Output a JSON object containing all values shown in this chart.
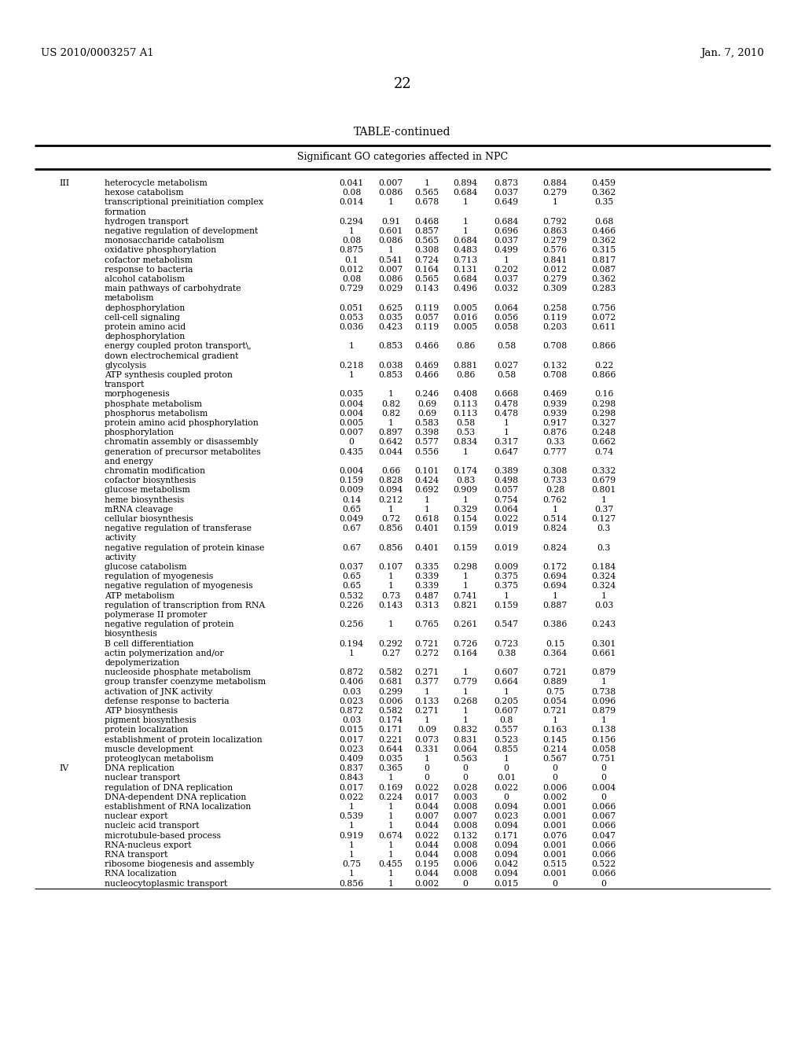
{
  "header_left": "US 2010/0003257 A1",
  "header_right": "Jan. 7, 2010",
  "page_number": "22",
  "table_title": "TABLE-continued",
  "subtitle": "Significant GO categories affected in NPC",
  "rows": [
    {
      "roman": "III",
      "cat": "heterocycle metabolism",
      "cont": "",
      "vals": [
        "0.041",
        "0.007",
        "1",
        "0.894",
        "0.873",
        "0.884",
        "0.459"
      ]
    },
    {
      "roman": "",
      "cat": "hexose catabolism",
      "cont": "",
      "vals": [
        "0.08",
        "0.086",
        "0.565",
        "0.684",
        "0.037",
        "0.279",
        "0.362"
      ]
    },
    {
      "roman": "",
      "cat": "transcriptional preinitiation complex",
      "cont": "formation",
      "vals": [
        "0.014",
        "1",
        "0.678",
        "1",
        "0.649",
        "1",
        "0.35"
      ]
    },
    {
      "roman": "",
      "cat": "hydrogen transport",
      "cont": "",
      "vals": [
        "0.294",
        "0.91",
        "0.468",
        "1",
        "0.684",
        "0.792",
        "0.68"
      ]
    },
    {
      "roman": "",
      "cat": "negative regulation of development",
      "cont": "",
      "vals": [
        "1",
        "0.601",
        "0.857",
        "1",
        "0.696",
        "0.863",
        "0.466"
      ]
    },
    {
      "roman": "",
      "cat": "monosaccharide catabolism",
      "cont": "",
      "vals": [
        "0.08",
        "0.086",
        "0.565",
        "0.684",
        "0.037",
        "0.279",
        "0.362"
      ]
    },
    {
      "roman": "",
      "cat": "oxidative phosphorylation",
      "cont": "",
      "vals": [
        "0.875",
        "1",
        "0.308",
        "0.483",
        "0.499",
        "0.576",
        "0.315"
      ]
    },
    {
      "roman": "",
      "cat": "cofactor metabolism",
      "cont": "",
      "vals": [
        "0.1",
        "0.541",
        "0.724",
        "0.713",
        "1",
        "0.841",
        "0.817"
      ]
    },
    {
      "roman": "",
      "cat": "response to bacteria",
      "cont": "",
      "vals": [
        "0.012",
        "0.007",
        "0.164",
        "0.131",
        "0.202",
        "0.012",
        "0.087"
      ]
    },
    {
      "roman": "",
      "cat": "alcohol catabolism",
      "cont": "",
      "vals": [
        "0.08",
        "0.086",
        "0.565",
        "0.684",
        "0.037",
        "0.279",
        "0.362"
      ]
    },
    {
      "roman": "",
      "cat": "main pathways of carbohydrate",
      "cont": "metabolism",
      "vals": [
        "0.729",
        "0.029",
        "0.143",
        "0.496",
        "0.032",
        "0.309",
        "0.283"
      ]
    },
    {
      "roman": "",
      "cat": "dephosphorylation",
      "cont": "",
      "vals": [
        "0.051",
        "0.625",
        "0.119",
        "0.005",
        "0.064",
        "0.258",
        "0.756"
      ]
    },
    {
      "roman": "",
      "cat": "cell-cell signaling",
      "cont": "",
      "vals": [
        "0.053",
        "0.035",
        "0.057",
        "0.016",
        "0.056",
        "0.119",
        "0.072"
      ]
    },
    {
      "roman": "",
      "cat": "protein amino acid",
      "cont": "dephosphorylation",
      "vals": [
        "0.036",
        "0.423",
        "0.119",
        "0.005",
        "0.058",
        "0.203",
        "0.611"
      ]
    },
    {
      "roman": "",
      "cat": "energy coupled proton transport\\,",
      "cont": "down electrochemical gradient",
      "vals": [
        "1",
        "0.853",
        "0.466",
        "0.86",
        "0.58",
        "0.708",
        "0.866"
      ]
    },
    {
      "roman": "",
      "cat": "glycolysis",
      "cont": "",
      "vals": [
        "0.218",
        "0.038",
        "0.469",
        "0.881",
        "0.027",
        "0.132",
        "0.22"
      ]
    },
    {
      "roman": "",
      "cat": "ATP synthesis coupled proton",
      "cont": "transport",
      "vals": [
        "1",
        "0.853",
        "0.466",
        "0.86",
        "0.58",
        "0.708",
        "0.866"
      ]
    },
    {
      "roman": "",
      "cat": "morphogenesis",
      "cont": "",
      "vals": [
        "0.035",
        "1",
        "0.246",
        "0.408",
        "0.668",
        "0.469",
        "0.16"
      ]
    },
    {
      "roman": "",
      "cat": "phosphate metabolism",
      "cont": "",
      "vals": [
        "0.004",
        "0.82",
        "0.69",
        "0.113",
        "0.478",
        "0.939",
        "0.298"
      ]
    },
    {
      "roman": "",
      "cat": "phosphorus metabolism",
      "cont": "",
      "vals": [
        "0.004",
        "0.82",
        "0.69",
        "0.113",
        "0.478",
        "0.939",
        "0.298"
      ]
    },
    {
      "roman": "",
      "cat": "protein amino acid phosphorylation",
      "cont": "",
      "vals": [
        "0.005",
        "1",
        "0.583",
        "0.58",
        "1",
        "0.917",
        "0.327"
      ]
    },
    {
      "roman": "",
      "cat": "phosphorylation",
      "cont": "",
      "vals": [
        "0.007",
        "0.897",
        "0.398",
        "0.53",
        "1",
        "0.876",
        "0.248"
      ]
    },
    {
      "roman": "",
      "cat": "chromatin assembly or disassembly",
      "cont": "",
      "vals": [
        "0",
        "0.642",
        "0.577",
        "0.834",
        "0.317",
        "0.33",
        "0.662"
      ]
    },
    {
      "roman": "",
      "cat": "generation of precursor metabolites",
      "cont": "and energy",
      "vals": [
        "0.435",
        "0.044",
        "0.556",
        "1",
        "0.647",
        "0.777",
        "0.74"
      ]
    },
    {
      "roman": "",
      "cat": "chromatin modification",
      "cont": "",
      "vals": [
        "0.004",
        "0.66",
        "0.101",
        "0.174",
        "0.389",
        "0.308",
        "0.332"
      ]
    },
    {
      "roman": "",
      "cat": "cofactor biosynthesis",
      "cont": "",
      "vals": [
        "0.159",
        "0.828",
        "0.424",
        "0.83",
        "0.498",
        "0.733",
        "0.679"
      ]
    },
    {
      "roman": "",
      "cat": "glucose metabolism",
      "cont": "",
      "vals": [
        "0.009",
        "0.094",
        "0.692",
        "0.909",
        "0.057",
        "0.28",
        "0.801"
      ]
    },
    {
      "roman": "",
      "cat": "heme biosynthesis",
      "cont": "",
      "vals": [
        "0.14",
        "0.212",
        "1",
        "1",
        "0.754",
        "0.762",
        "1"
      ]
    },
    {
      "roman": "",
      "cat": "mRNA cleavage",
      "cont": "",
      "vals": [
        "0.65",
        "1",
        "1",
        "0.329",
        "0.064",
        "1",
        "0.37"
      ]
    },
    {
      "roman": "",
      "cat": "cellular biosynthesis",
      "cont": "",
      "vals": [
        "0.049",
        "0.72",
        "0.618",
        "0.154",
        "0.022",
        "0.514",
        "0.127"
      ]
    },
    {
      "roman": "",
      "cat": "negative regulation of transferase",
      "cont": "activity",
      "vals": [
        "0.67",
        "0.856",
        "0.401",
        "0.159",
        "0.019",
        "0.824",
        "0.3"
      ]
    },
    {
      "roman": "",
      "cat": "negative regulation of protein kinase",
      "cont": "activity",
      "vals": [
        "0.67",
        "0.856",
        "0.401",
        "0.159",
        "0.019",
        "0.824",
        "0.3"
      ]
    },
    {
      "roman": "",
      "cat": "glucose catabolism",
      "cont": "",
      "vals": [
        "0.037",
        "0.107",
        "0.335",
        "0.298",
        "0.009",
        "0.172",
        "0.184"
      ]
    },
    {
      "roman": "",
      "cat": "regulation of myogenesis",
      "cont": "",
      "vals": [
        "0.65",
        "1",
        "0.339",
        "1",
        "0.375",
        "0.694",
        "0.324"
      ]
    },
    {
      "roman": "",
      "cat": "negative regulation of myogenesis",
      "cont": "",
      "vals": [
        "0.65",
        "1",
        "0.339",
        "1",
        "0.375",
        "0.694",
        "0.324"
      ]
    },
    {
      "roman": "",
      "cat": "ATP metabolism",
      "cont": "",
      "vals": [
        "0.532",
        "0.73",
        "0.487",
        "0.741",
        "1",
        "1",
        "1"
      ]
    },
    {
      "roman": "",
      "cat": "regulation of transcription from RNA",
      "cont": "polymerase II promoter",
      "vals": [
        "0.226",
        "0.143",
        "0.313",
        "0.821",
        "0.159",
        "0.887",
        "0.03"
      ]
    },
    {
      "roman": "",
      "cat": "negative regulation of protein",
      "cont": "biosynthesis",
      "vals": [
        "0.256",
        "1",
        "0.765",
        "0.261",
        "0.547",
        "0.386",
        "0.243"
      ]
    },
    {
      "roman": "",
      "cat": "B cell differentiation",
      "cont": "",
      "vals": [
        "0.194",
        "0.292",
        "0.721",
        "0.726",
        "0.723",
        "0.15",
        "0.301"
      ]
    },
    {
      "roman": "",
      "cat": "actin polymerization and/or",
      "cont": "depolymerization",
      "vals": [
        "1",
        "0.27",
        "0.272",
        "0.164",
        "0.38",
        "0.364",
        "0.661"
      ]
    },
    {
      "roman": "",
      "cat": "nucleoside phosphate metabolism",
      "cont": "",
      "vals": [
        "0.872",
        "0.582",
        "0.271",
        "1",
        "0.607",
        "0.721",
        "0.879"
      ]
    },
    {
      "roman": "",
      "cat": "group transfer coenzyme metabolism",
      "cont": "",
      "vals": [
        "0.406",
        "0.681",
        "0.377",
        "0.779",
        "0.664",
        "0.889",
        "1"
      ]
    },
    {
      "roman": "",
      "cat": "activation of JNK activity",
      "cont": "",
      "vals": [
        "0.03",
        "0.299",
        "1",
        "1",
        "1",
        "0.75",
        "0.738"
      ]
    },
    {
      "roman": "",
      "cat": "defense response to bacteria",
      "cont": "",
      "vals": [
        "0.023",
        "0.006",
        "0.133",
        "0.268",
        "0.205",
        "0.054",
        "0.096"
      ]
    },
    {
      "roman": "",
      "cat": "ATP biosynthesis",
      "cont": "",
      "vals": [
        "0.872",
        "0.582",
        "0.271",
        "1",
        "0.607",
        "0.721",
        "0.879"
      ]
    },
    {
      "roman": "",
      "cat": "pigment biosynthesis",
      "cont": "",
      "vals": [
        "0.03",
        "0.174",
        "1",
        "1",
        "0.8",
        "1",
        "1"
      ]
    },
    {
      "roman": "",
      "cat": "protein localization",
      "cont": "",
      "vals": [
        "0.015",
        "0.171",
        "0.09",
        "0.832",
        "0.557",
        "0.163",
        "0.138"
      ]
    },
    {
      "roman": "",
      "cat": "establishment of protein localization",
      "cont": "",
      "vals": [
        "0.017",
        "0.221",
        "0.073",
        "0.831",
        "0.523",
        "0.145",
        "0.156"
      ]
    },
    {
      "roman": "",
      "cat": "muscle development",
      "cont": "",
      "vals": [
        "0.023",
        "0.644",
        "0.331",
        "0.064",
        "0.855",
        "0.214",
        "0.058"
      ]
    },
    {
      "roman": "",
      "cat": "proteoglycan metabolism",
      "cont": "",
      "vals": [
        "0.409",
        "0.035",
        "1",
        "0.563",
        "1",
        "0.567",
        "0.751"
      ]
    },
    {
      "roman": "IV",
      "cat": "DNA replication",
      "cont": "",
      "vals": [
        "0.837",
        "0.365",
        "0",
        "0",
        "0",
        "0",
        "0"
      ]
    },
    {
      "roman": "",
      "cat": "nuclear transport",
      "cont": "",
      "vals": [
        "0.843",
        "1",
        "0",
        "0",
        "0.01",
        "0",
        "0"
      ]
    },
    {
      "roman": "",
      "cat": "regulation of DNA replication",
      "cont": "",
      "vals": [
        "0.017",
        "0.169",
        "0.022",
        "0.028",
        "0.022",
        "0.006",
        "0.004"
      ]
    },
    {
      "roman": "",
      "cat": "DNA-dependent DNA replication",
      "cont": "",
      "vals": [
        "0.022",
        "0.224",
        "0.017",
        "0.003",
        "0",
        "0.002",
        "0"
      ]
    },
    {
      "roman": "",
      "cat": "establishment of RNA localization",
      "cont": "",
      "vals": [
        "1",
        "1",
        "0.044",
        "0.008",
        "0.094",
        "0.001",
        "0.066"
      ]
    },
    {
      "roman": "",
      "cat": "nuclear export",
      "cont": "",
      "vals": [
        "0.539",
        "1",
        "0.007",
        "0.007",
        "0.023",
        "0.001",
        "0.067"
      ]
    },
    {
      "roman": "",
      "cat": "nucleic acid transport",
      "cont": "",
      "vals": [
        "1",
        "1",
        "0.044",
        "0.008",
        "0.094",
        "0.001",
        "0.066"
      ]
    },
    {
      "roman": "",
      "cat": "microtubule-based process",
      "cont": "",
      "vals": [
        "0.919",
        "0.674",
        "0.022",
        "0.132",
        "0.171",
        "0.076",
        "0.047"
      ]
    },
    {
      "roman": "",
      "cat": "RNA-nucleus export",
      "cont": "",
      "vals": [
        "1",
        "1",
        "0.044",
        "0.008",
        "0.094",
        "0.001",
        "0.066"
      ]
    },
    {
      "roman": "",
      "cat": "RNA transport",
      "cont": "",
      "vals": [
        "1",
        "1",
        "0.044",
        "0.008",
        "0.094",
        "0.001",
        "0.066"
      ]
    },
    {
      "roman": "",
      "cat": "ribosome biogenesis and assembly",
      "cont": "",
      "vals": [
        "0.75",
        "0.455",
        "0.195",
        "0.006",
        "0.042",
        "0.515",
        "0.522"
      ]
    },
    {
      "roman": "",
      "cat": "RNA localization",
      "cont": "",
      "vals": [
        "1",
        "1",
        "0.044",
        "0.008",
        "0.094",
        "0.001",
        "0.066"
      ]
    },
    {
      "roman": "",
      "cat": "nucleocytoplasmic transport",
      "cont": "",
      "vals": [
        "0.856",
        "1",
        "0.002",
        "0",
        "0.015",
        "0",
        "0"
      ]
    }
  ]
}
